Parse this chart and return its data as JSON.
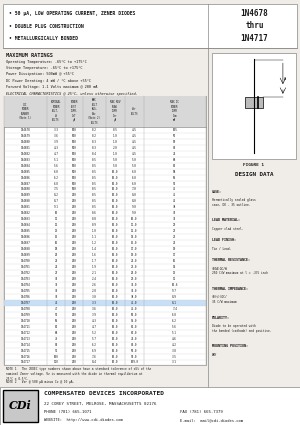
{
  "title_part": "1N4678\nthru\n1N4717",
  "bullets": [
    "• 50 μA, LOW OPERATING CURRENT, ZENER DIODES",
    "• DOUBLE PLUG CONSTRUCTION",
    "• METALLURGICALLY BONDED"
  ],
  "max_ratings_title": "MAXIMUM RATINGS",
  "max_ratings": [
    "Operating Temperature: -65°C to +175°C",
    "Storage Temperature: -65°C to +175°C",
    "Power Dissipation: 500mW @ +55°C",
    "DC Power Derating: 4 mW / °C above +55°C",
    "Forward Voltage: 1.1 Volts maximum @ 200 mA"
  ],
  "elec_char_title": "ELECTRICAL CHARACTERISTICS @ 25°C, unless otherwise specified.",
  "table_data": [
    [
      "1N4678",
      "3.3",
      "500",
      "0.2",
      "0.5",
      "4.5",
      "105"
    ],
    [
      "1N4679",
      "3.6",
      "500",
      "0.2",
      "1.0",
      "4.5",
      "96"
    ],
    [
      "1N4680",
      "3.9",
      "500",
      "0.3",
      "1.0",
      "4.5",
      "89"
    ],
    [
      "1N4681",
      "4.3",
      "500",
      "0.3",
      "2.0",
      "4.5",
      "81"
    ],
    [
      "1N4682",
      "4.7",
      "500",
      "0.4",
      "1.0",
      "4.5",
      "74"
    ],
    [
      "1N4683",
      "5.1",
      "500",
      "0.5",
      "5.0",
      "5.0",
      "68"
    ],
    [
      "1N4684",
      "5.6",
      "500",
      "0.5",
      "5.0",
      "5.0",
      "62"
    ],
    [
      "1N4685",
      "6.0",
      "500",
      "0.5",
      "10.0",
      "6.0",
      "58"
    ],
    [
      "1N4686",
      "6.2",
      "500",
      "0.5",
      "10.0",
      "6.0",
      "56"
    ],
    [
      "1N4687",
      "6.8",
      "500",
      "0.5",
      "10.0",
      "6.0",
      "51"
    ],
    [
      "1N4688",
      "7.5",
      "500",
      "0.5",
      "10.0",
      "7.0",
      "46"
    ],
    [
      "1N4689",
      "8.2",
      "200",
      "0.5",
      "10.0",
      "8.0",
      "42"
    ],
    [
      "1N4690",
      "8.7",
      "200",
      "0.5",
      "10.0",
      "8.0",
      "40"
    ],
    [
      "1N4691",
      "9.1",
      "200",
      "0.5",
      "10.0",
      "9.0",
      "38"
    ],
    [
      "1N4692",
      "10",
      "200",
      "0.6",
      "10.0",
      "9.0",
      "35"
    ],
    [
      "1N4693",
      "11",
      "200",
      "0.8",
      "10.0",
      "10.0",
      "31"
    ],
    [
      "1N4694",
      "12",
      "200",
      "0.9",
      "10.0",
      "11.0",
      "29"
    ],
    [
      "1N4695",
      "13",
      "200",
      "1.0",
      "10.0",
      "12.0",
      "27"
    ],
    [
      "1N4696",
      "15",
      "200",
      "1.1",
      "10.0",
      "14.0",
      "23"
    ],
    [
      "1N4697",
      "16",
      "200",
      "1.2",
      "10.0",
      "15.0",
      "21"
    ],
    [
      "1N4698",
      "18",
      "200",
      "1.4",
      "10.0",
      "17.0",
      "19"
    ],
    [
      "1N4699",
      "20",
      "200",
      "1.6",
      "10.0",
      "19.0",
      "17"
    ],
    [
      "1N4700",
      "22",
      "200",
      "1.7",
      "10.0",
      "21.0",
      "16"
    ],
    [
      "1N4701",
      "24",
      "200",
      "1.9",
      "10.0",
      "23.0",
      "14"
    ],
    [
      "1N4702",
      "27",
      "200",
      "2.1",
      "10.0",
      "26.0",
      "13"
    ],
    [
      "1N4703",
      "30",
      "200",
      "2.4",
      "10.0",
      "29.0",
      "11"
    ],
    [
      "1N4704",
      "33",
      "200",
      "2.6",
      "10.0",
      "32.0",
      "10.6"
    ],
    [
      "1N4705",
      "36",
      "200",
      "2.8",
      "10.0",
      "35.0",
      "9.7"
    ],
    [
      "1N4706",
      "39",
      "200",
      "3.0",
      "10.0",
      "38.0",
      "8.9"
    ],
    [
      "1N4707",
      "43",
      "200",
      "3.3",
      "10.0",
      "42.0",
      "8.1"
    ],
    [
      "1N4708",
      "47",
      "200",
      "3.6",
      "10.0",
      "46.0",
      "7.4"
    ],
    [
      "1N4709",
      "51",
      "200",
      "3.9",
      "10.0",
      "50.0",
      "6.8"
    ],
    [
      "1N4710",
      "56",
      "200",
      "4.3",
      "10.0",
      "55.0",
      "6.2"
    ],
    [
      "1N4711",
      "62",
      "200",
      "4.7",
      "10.0",
      "61.0",
      "5.6"
    ],
    [
      "1N4712",
      "68",
      "200",
      "5.2",
      "10.0",
      "67.0",
      "5.1"
    ],
    [
      "1N4713",
      "75",
      "200",
      "5.7",
      "10.0",
      "74.0",
      "4.6"
    ],
    [
      "1N4714",
      "82",
      "200",
      "6.2",
      "10.0",
      "81.0",
      "4.2"
    ],
    [
      "1N4715",
      "91",
      "200",
      "6.9",
      "10.0",
      "90.0",
      "3.8"
    ],
    [
      "1N4716",
      "100",
      "200",
      "7.6",
      "10.0",
      "99.0",
      "3.5"
    ],
    [
      "1N4717",
      "110",
      "200",
      "8.4",
      "10.0",
      "109.0",
      "3.1"
    ]
  ],
  "note1": "NOTE 1   The JEDEC type numbers shown above have a standard tolerance of ±5% of the\nnominal Zener voltage. Vz is measured with the diode in thermal equilibrium at\n25°C ± 0.5°C.",
  "note2": "NOTE 2   Vzr @ 500 μA minus Iz @ 10 μA.",
  "design_data_title": "DESIGN DATA",
  "design_data": [
    [
      "CASE:",
      "Hermetically sealed glass\ncase, DO - 35 outline."
    ],
    [
      "LEAD MATERIAL:",
      "Copper clad steel."
    ],
    [
      "LEAD FINISH:",
      "Tin / Lead."
    ],
    [
      "THERMAL RESISTANCE:",
      "(θJA)ΩC/W\n250 C/W maximum at l = .375 inch"
    ],
    [
      "THERMAL IMPEDANCE:",
      "(θ(t))ΩC/\n35 C/W maximum"
    ],
    [
      "POLARITY:",
      "Diode to be operated with\nthe banded (cathode) end positive."
    ],
    [
      "MOUNTING POSITION:",
      "ANY"
    ]
  ],
  "figure_label": "FIGURE 1",
  "company_name": "COMPENSATED DEVICES INCORPORATED",
  "company_address": "22 COREY STREET, MELROSE, MASSACHUSETTS 02176",
  "company_phone": "PHONE (781) 665-1071",
  "company_fax": "FAX (781) 665-7379",
  "company_website": "WEBSITE:  http://www.cdi-diodes.com",
  "company_email": "E-mail:  mail@cdi-diodes.com",
  "bg_color": "#f0ede8",
  "text_color": "#1a1a1a",
  "highlight_row": 29
}
